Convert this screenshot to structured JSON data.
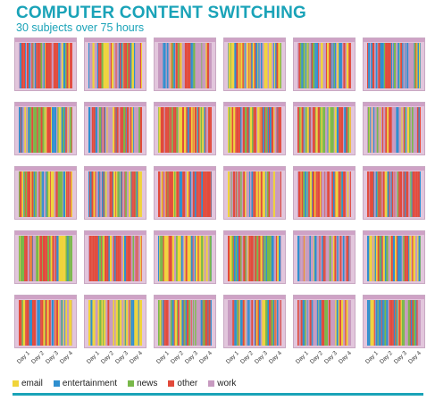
{
  "title": "COMPUTER CONTENT SWITCHING",
  "subtitle": "30 subjects over 75 hours",
  "chart_data": {
    "type": "heatmap",
    "title": "COMPUTER CONTENT SWITCHING",
    "subtitle": "30 subjects over 75 hours",
    "rows": 5,
    "cols": 6,
    "subjects": 30,
    "x_tick_labels": [
      "Day 1",
      "Day 2",
      "Day 3",
      "Day 4"
    ],
    "categories": [
      "email",
      "entertainment",
      "news",
      "other",
      "work"
    ],
    "category_colors": {
      "email": "#f0d43a",
      "entertainment": "#2f8fcf",
      "news": "#79b84a",
      "other": "#e24a3b",
      "work": "#c79ac0"
    },
    "legend_position": "bottom-left"
  },
  "legend": [
    {
      "label": "email",
      "color": "#f0d43a"
    },
    {
      "label": "entertainment",
      "color": "#2f8fcf"
    },
    {
      "label": "news",
      "color": "#79b84a"
    },
    {
      "label": "other",
      "color": "#e24a3b"
    },
    {
      "label": "work",
      "color": "#c79ac0"
    }
  ],
  "accent": "#1aa3b8"
}
